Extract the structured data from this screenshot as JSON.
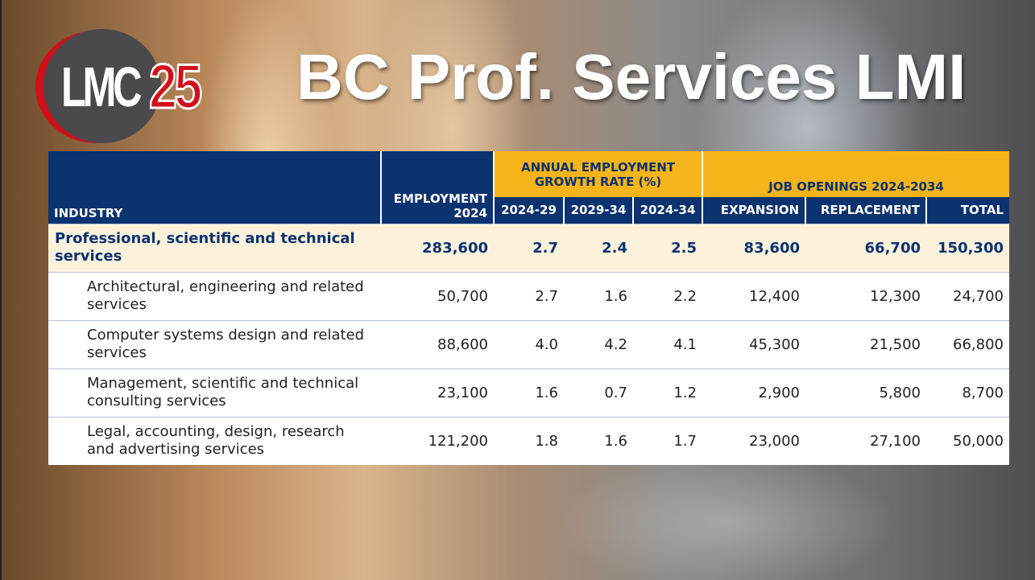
{
  "logo": {
    "letters": "LMC",
    "number": "25"
  },
  "title": "BC Prof. Services LMI",
  "table": {
    "header": {
      "industry": "INDUSTRY",
      "employment": "EMPLOYMENT 2024",
      "growth_group": "ANNUAL EMPLOYMENT GROWTH RATE (%)",
      "growth_columns": [
        "2024-29",
        "2029-34",
        "2024-34"
      ],
      "openings_group": "JOB OPENINGS 2024-2034",
      "openings_columns": [
        "EXPANSION",
        "REPLACEMENT",
        "TOTAL"
      ]
    },
    "rows": [
      [
        "Professional, scientific and technical services",
        "283,600",
        "2.7",
        "2.4",
        "2.5",
        "83,600",
        "66,700",
        "150,300"
      ],
      [
        "Architectural, engineering and related services",
        "50,700",
        "2.7",
        "1.6",
        "2.2",
        "12,400",
        "12,300",
        "24,700"
      ],
      [
        "Computer systems design and related services",
        "88,600",
        "4.0",
        "4.2",
        "4.1",
        "45,300",
        "21,500",
        "66,800"
      ],
      [
        "Management, scientific and technical consulting services",
        "23,100",
        "1.6",
        "0.7",
        "1.2",
        "2,900",
        "5,800",
        "8,700"
      ],
      [
        "Legal, accounting, design, research and advertising services",
        "121,200",
        "1.8",
        "1.6",
        "1.7",
        "23,000",
        "27,100",
        "50,000"
      ]
    ]
  }
}
